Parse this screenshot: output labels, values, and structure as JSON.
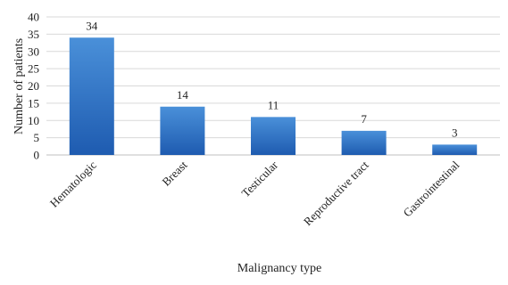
{
  "chart_data": {
    "type": "bar",
    "categories": [
      "Hematologic",
      "Breast",
      "Testicular",
      "Reproductive tract",
      "Gastrointestinal"
    ],
    "values": [
      34,
      14,
      11,
      7,
      3
    ],
    "xlabel": "Malignancy type",
    "ylabel": "Number of patients",
    "ylim": [
      0,
      40
    ],
    "yticks": [
      0,
      5,
      10,
      15,
      20,
      25,
      30,
      35,
      40
    ],
    "grid": true,
    "data_labels": true,
    "bar_color_top": "#4a90d9",
    "bar_color_bottom": "#1e5bb0"
  }
}
